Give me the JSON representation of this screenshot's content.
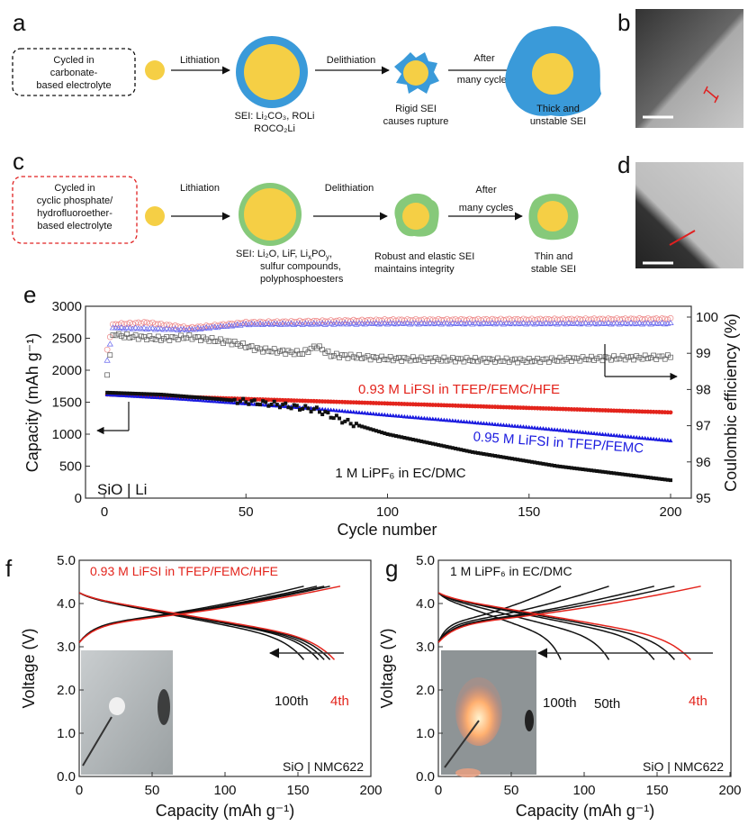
{
  "panels": {
    "a": "a",
    "b": "b",
    "c": "c",
    "d": "d",
    "e": "e",
    "f": "f",
    "g": "g"
  },
  "panel_a": {
    "box_lines": [
      "Cycled in",
      "carbonate-",
      "based electrolyte"
    ],
    "step1": "Lithiation",
    "step2": "Delithiation",
    "step3_lines": [
      "After",
      "many cycles"
    ],
    "sei_lines": [
      "SEI: Li₂CO₃, ROLi",
      "ROCO₂Li"
    ],
    "rupture_lines": [
      "Rigid SEI",
      "causes rupture"
    ],
    "final_lines": [
      "Thick and",
      "unstable SEI"
    ]
  },
  "panel_c": {
    "box_lines": [
      "Cycled in",
      "cyclic phosphate/",
      "hydrofluoroether-",
      "based electrolyte"
    ],
    "step1": "Lithiation",
    "step2": "Delithiation",
    "step3_lines": [
      "After",
      "many cycles"
    ],
    "sei_line1_a": "SEI: Li₂O, LiF, Li",
    "sei_line1_x": "x",
    "sei_line1_b": "PO",
    "sei_line1_y": "y",
    "sei_line1_c": ",",
    "sei_lines": [
      "sulfur compounds,",
      "polyphosphoesters"
    ],
    "robust_lines": [
      "Robust and elastic SEI",
      "maintains integrity"
    ],
    "final_lines": [
      "Thin and",
      "stable SEI"
    ]
  },
  "colors": {
    "carbonate_sei": "#3a9ad9",
    "phosphate_sei": "#86c97a",
    "core": "#f5cf45",
    "hfe": "#e3241c",
    "tfep": "#1a1adf",
    "lipf6": "#111111"
  },
  "chart_data": [
    {
      "panel": "e",
      "type": "scatter",
      "xlabel": "Cycle number",
      "ylabel": "Capacity (mAh g⁻¹)",
      "y2label": "Coulombic efficiency (%)",
      "xlim": [
        0,
        200
      ],
      "ylim": [
        0,
        3000
      ],
      "y2lim": [
        95,
        100
      ],
      "xticks": [
        "0",
        "50",
        "100",
        "150",
        "200"
      ],
      "yticks": [
        "0",
        "500",
        "1000",
        "1500",
        "2000",
        "2500",
        "3000"
      ],
      "y2ticks": [
        "95",
        "96",
        "97",
        "98",
        "99",
        "100"
      ],
      "annotation": "SiO | Li",
      "series": [
        {
          "name": "0.93 M LiFSI in TFEP/FEMC/HFE",
          "color": "#e3241c",
          "capacity": [
            [
              1,
              1620
            ],
            [
              50,
              1550
            ],
            [
              100,
              1480
            ],
            [
              150,
              1410
            ],
            [
              200,
              1340
            ]
          ],
          "ce": [
            [
              1,
              99.1
            ],
            [
              3,
              99.8
            ],
            [
              15,
              99.85
            ],
            [
              30,
              99.7
            ],
            [
              50,
              99.85
            ],
            [
              100,
              99.92
            ],
            [
              200,
              99.95
            ]
          ]
        },
        {
          "name": "0.95 M LiFSI in TFEP/FEMC",
          "color": "#1a1adf",
          "capacity": [
            [
              1,
              1620
            ],
            [
              25,
              1560
            ],
            [
              50,
              1480
            ],
            [
              75,
              1400
            ],
            [
              100,
              1300
            ],
            [
              150,
              1110
            ],
            [
              200,
              900
            ]
          ],
          "ce": [
            [
              1,
              98.8
            ],
            [
              3,
              99.7
            ],
            [
              30,
              99.65
            ],
            [
              50,
              99.8
            ],
            [
              100,
              99.82
            ],
            [
              200,
              99.82
            ]
          ]
        },
        {
          "name": "1 M LiPF₆ in EC/DMC",
          "color": "#111111",
          "capacity": [
            [
              1,
              1650
            ],
            [
              20,
              1620
            ],
            [
              40,
              1550
            ],
            [
              60,
              1470
            ],
            [
              75,
              1380
            ],
            [
              85,
              1200
            ],
            [
              100,
              1000
            ],
            [
              130,
              720
            ],
            [
              160,
              500
            ],
            [
              200,
              280
            ]
          ],
          "ce": [
            [
              1,
              98.4
            ],
            [
              3,
              99.5
            ],
            [
              20,
              99.4
            ],
            [
              30,
              99.45
            ],
            [
              45,
              99.3
            ],
            [
              55,
              99.1
            ],
            [
              70,
              99.0
            ],
            [
              75,
              99.2
            ],
            [
              80,
              98.95
            ],
            [
              100,
              98.85
            ],
            [
              150,
              98.8
            ],
            [
              170,
              98.85
            ],
            [
              200,
              98.9
            ]
          ]
        }
      ]
    },
    {
      "panel": "f",
      "type": "line",
      "title": "0.93 M LiFSI in TFEP/FEMC/HFE",
      "xlabel": "Capacity (mAh g⁻¹)",
      "ylabel": "Voltage (V)",
      "xlim": [
        0,
        200
      ],
      "ylim": [
        0,
        5
      ],
      "xticks": [
        "0",
        "50",
        "100",
        "150",
        "200"
      ],
      "yticks": [
        "0.0",
        "1.0",
        "2.0",
        "3.0",
        "4.0",
        "5.0"
      ],
      "annotation": "SiO | NMC622",
      "cycle_labels": [
        "100th",
        "4th"
      ],
      "curves": [
        {
          "cycle": "100th",
          "color": "#111111",
          "charge_capacity": 154,
          "discharge_capacity": 154
        },
        {
          "cycle": "black",
          "color": "#111111",
          "charge_capacity": 163,
          "discharge_capacity": 164
        },
        {
          "cycle": "black",
          "color": "#111111",
          "charge_capacity": 168,
          "discharge_capacity": 168
        },
        {
          "cycle": "black",
          "color": "#111111",
          "charge_capacity": 172,
          "discharge_capacity": 172
        },
        {
          "cycle": "4th",
          "color": "#e3241c",
          "charge_capacity": 179,
          "discharge_capacity": 175
        }
      ]
    },
    {
      "panel": "g",
      "type": "line",
      "title": "1 M LiPF₆ in EC/DMC",
      "xlabel": "Capacity (mAh g⁻¹)",
      "ylabel": "Voltage (V)",
      "xlim": [
        0,
        200
      ],
      "ylim": [
        0,
        5
      ],
      "xticks": [
        "0",
        "50",
        "100",
        "150",
        "200"
      ],
      "yticks": [
        "0.0",
        "1.0",
        "2.0",
        "3.0",
        "4.0",
        "5.0"
      ],
      "annotation": "SiO | NMC622",
      "cycle_labels": [
        "100th",
        "50th",
        "4th"
      ],
      "curves": [
        {
          "cycle": "100th",
          "color": "#111111",
          "charge_capacity": 84,
          "discharge_capacity": 84
        },
        {
          "cycle": "50th",
          "color": "#111111",
          "charge_capacity": 117,
          "discharge_capacity": 117
        },
        {
          "cycle": "black",
          "color": "#111111",
          "charge_capacity": 148,
          "discharge_capacity": 148
        },
        {
          "cycle": "black",
          "color": "#111111",
          "charge_capacity": 162,
          "discharge_capacity": 162
        },
        {
          "cycle": "4th",
          "color": "#e3241c",
          "charge_capacity": 180,
          "discharge_capacity": 173
        }
      ]
    }
  ]
}
